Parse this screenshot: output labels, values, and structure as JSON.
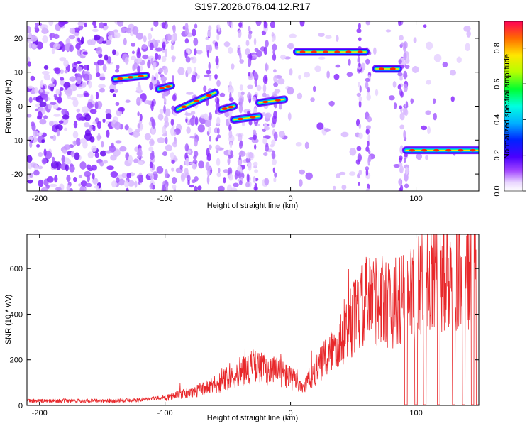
{
  "chart_data": [
    {
      "type": "heatmap",
      "title": "S197.2026.076.04.12.R17",
      "xlabel": "Height of straight line (km)",
      "ylabel": "Frequency (Hz)",
      "xlim": [
        -210,
        150
      ],
      "ylim": [
        -25,
        25
      ],
      "xticks": [
        -200,
        -100,
        0,
        100
      ],
      "yticks": [
        -20,
        -10,
        0,
        10,
        20
      ],
      "colorbar": {
        "label": "Normalized spectral amplitude",
        "range": [
          0.0,
          0.95
        ],
        "ticks": [
          "0.0",
          "0.2",
          "0.4",
          "0.6",
          "0.8"
        ]
      },
      "ridges": [
        {
          "x": [
            -140,
            -115
          ],
          "y": [
            8,
            9
          ]
        },
        {
          "x": [
            -105,
            -95
          ],
          "y": [
            5,
            6
          ]
        },
        {
          "x": [
            -90,
            -60
          ],
          "y": [
            -1,
            4
          ]
        },
        {
          "x": [
            -55,
            -45
          ],
          "y": [
            -1,
            0
          ]
        },
        {
          "x": [
            -45,
            -25
          ],
          "y": [
            -4,
            -3
          ]
        },
        {
          "x": [
            -25,
            -5
          ],
          "y": [
            1,
            2
          ]
        },
        {
          "x": [
            5,
            60
          ],
          "y": [
            16,
            16
          ]
        },
        {
          "x": [
            68,
            86
          ],
          "y": [
            11,
            11
          ]
        },
        {
          "x": [
            92,
            150
          ],
          "y": [
            -13,
            -13
          ]
        }
      ]
    },
    {
      "type": "line",
      "xlabel": "Height of straight line (km)",
      "ylabel": "SNR (10 * v/v)",
      "xlim": [
        -210,
        150
      ],
      "ylim": [
        0,
        750
      ],
      "xticks": [
        -200,
        -100,
        0,
        100
      ],
      "yticks": [
        0,
        200,
        400,
        600
      ],
      "series": [
        {
          "name": "SNR",
          "color": "#e8282b",
          "x": [
            -210,
            -150,
            -120,
            -100,
            -80,
            -60,
            -40,
            -30,
            -20,
            -10,
            0,
            10,
            20,
            30,
            40,
            50,
            60,
            70,
            80,
            90,
            100,
            110,
            120,
            130,
            140,
            150
          ],
          "y": [
            20,
            20,
            25,
            35,
            55,
            90,
            150,
            170,
            160,
            150,
            120,
            80,
            150,
            220,
            300,
            380,
            450,
            470,
            440,
            470,
            520,
            540,
            550,
            570,
            580,
            580
          ],
          "dropouts_x": [
            92,
            100,
            107,
            118,
            130,
            138,
            145,
            149
          ]
        }
      ]
    }
  ]
}
